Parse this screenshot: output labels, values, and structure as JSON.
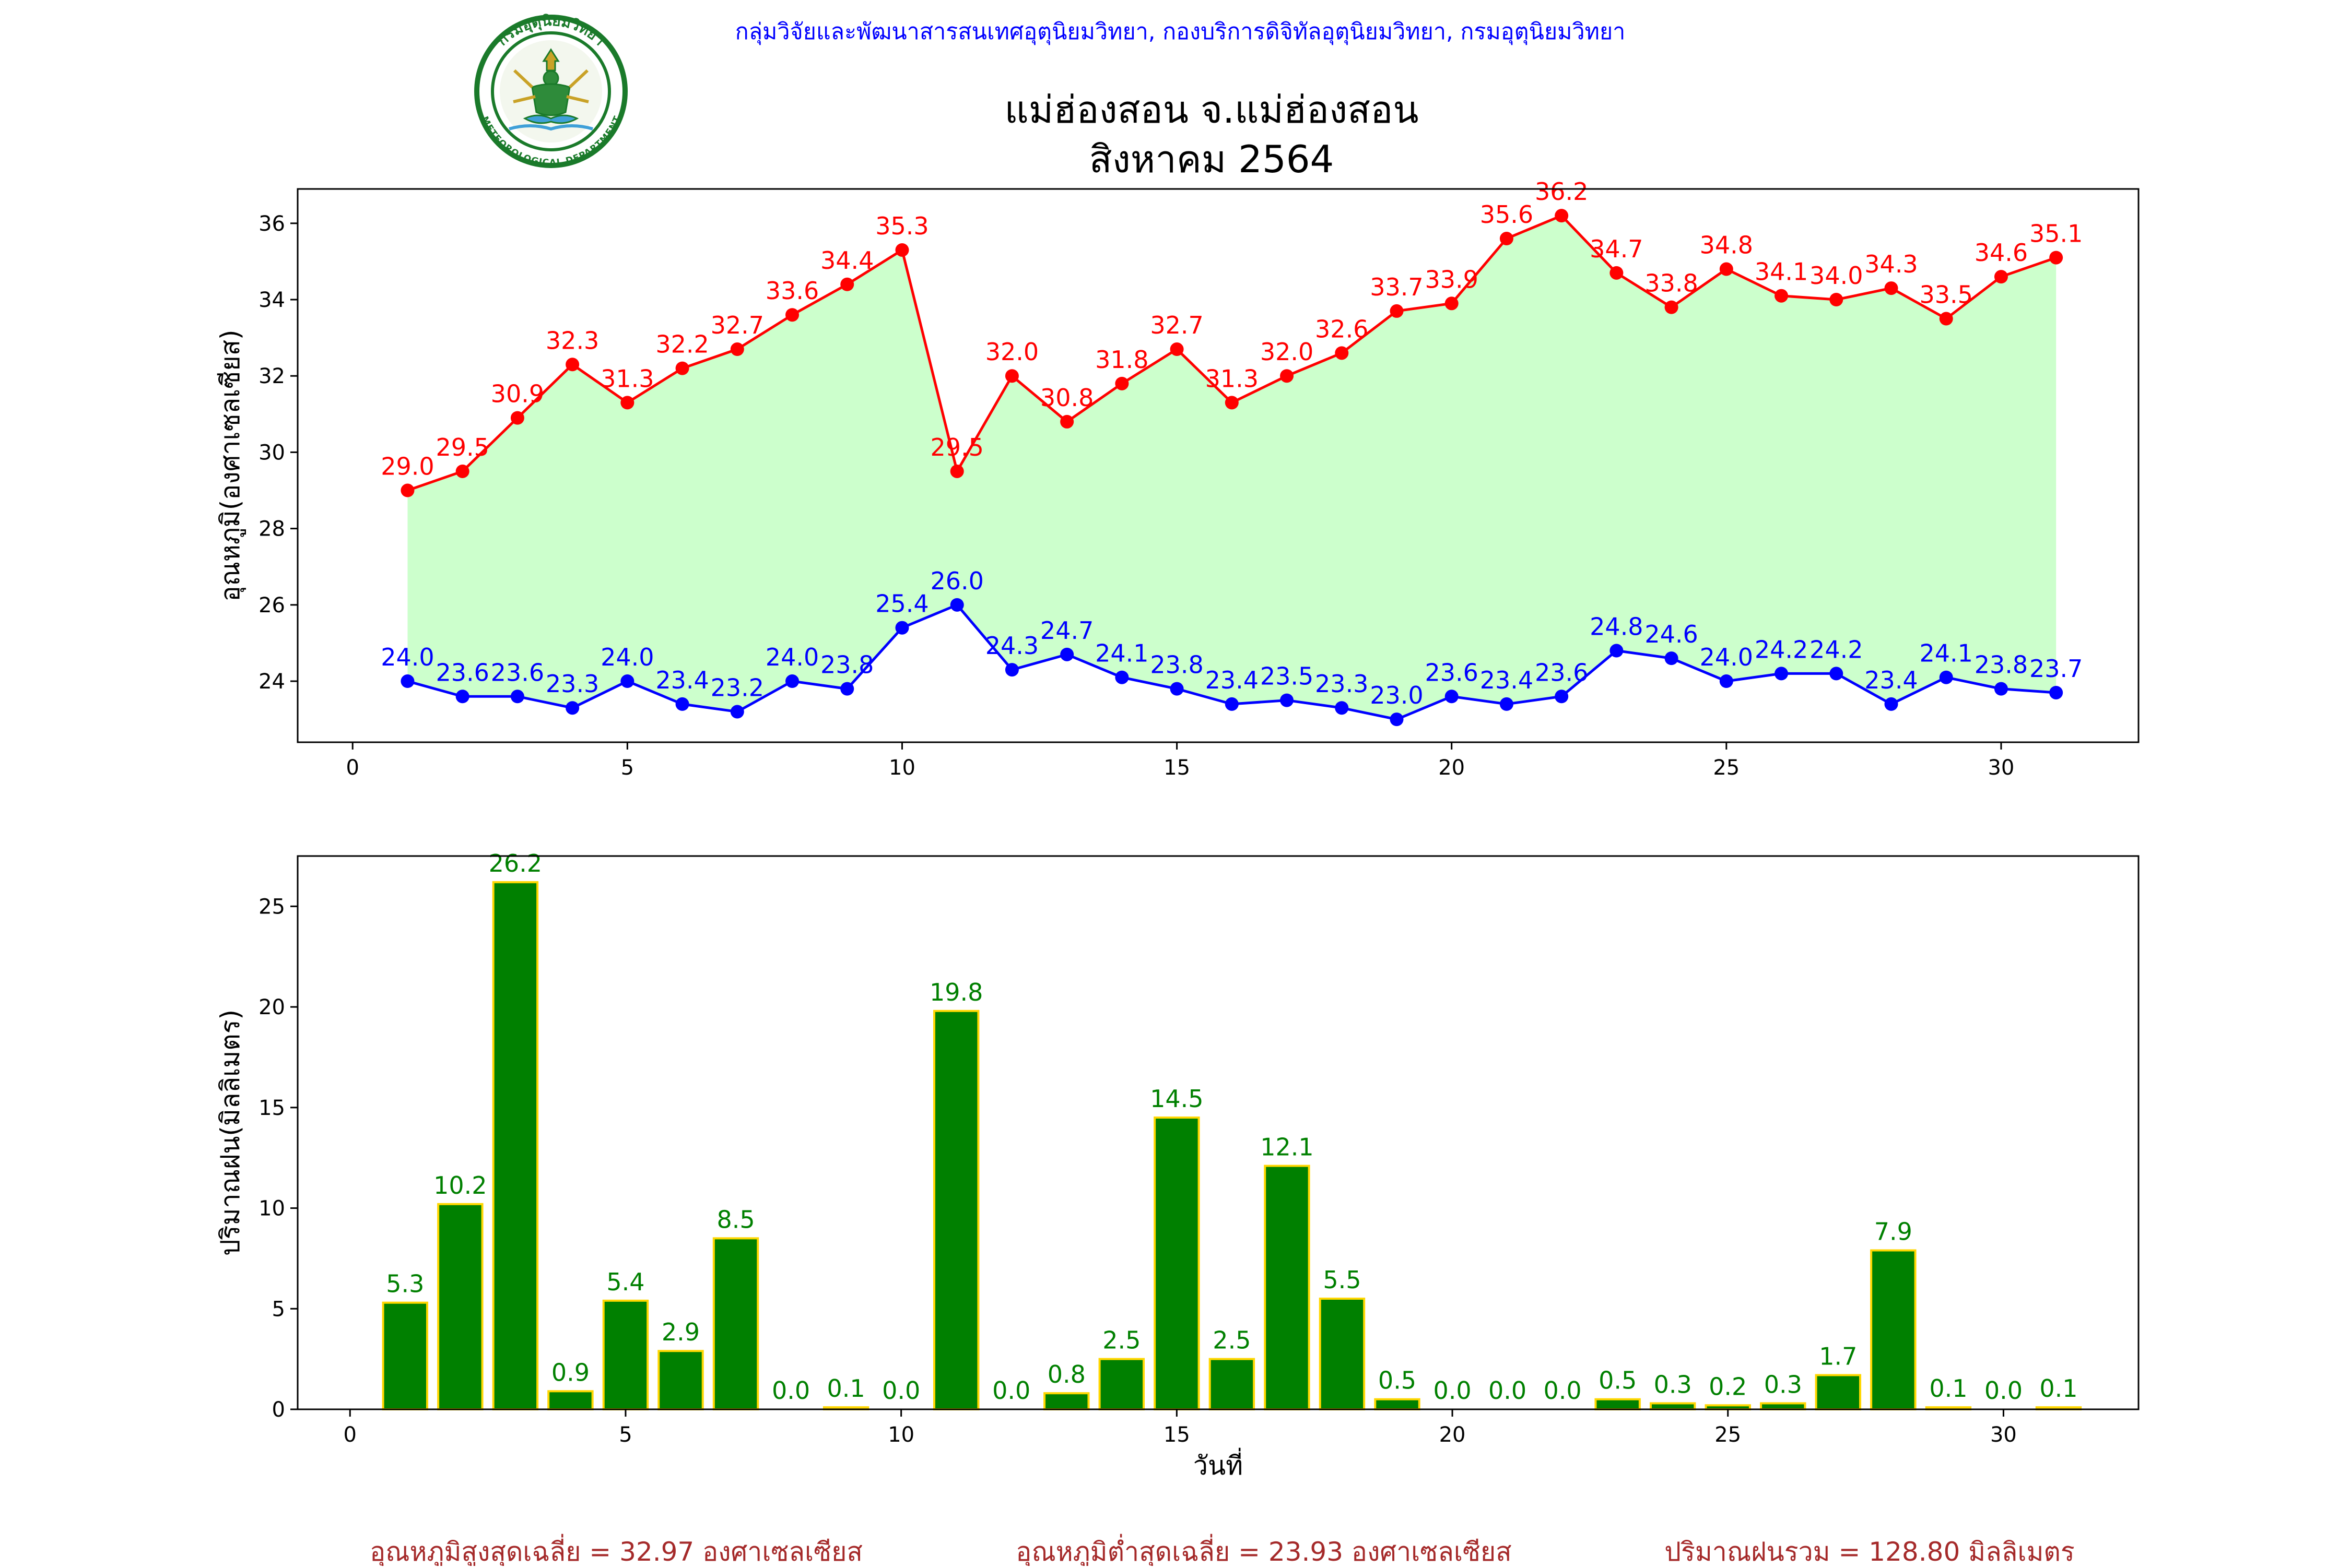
{
  "header": {
    "org_line": "กลุ่มวิจัยและพัฒนาสารสนเทศอุตุนิยมวิทยา, กองบริการดิจิทัลอุตุนิยมวิทยา, กรมอุตุนิยมวิทยา",
    "title_line1": "แม่ฮ่องสอน จ.แม่ฮ่องสอน",
    "title_line2": "สิงหาคม 2564",
    "logo_text_top": "กรมอุตุนิยมวิทยา",
    "logo_text_bottom": "METEOROLOGICAL DEPARTMENT"
  },
  "colors": {
    "max_temp": "#ff0000",
    "min_temp": "#0000ff",
    "fill_between": "#ccffcc",
    "rain_bar": "#008000",
    "rain_bar_edge": "#ffd700",
    "rain_label": "#008000",
    "header_text": "#0000ff",
    "footer_text": "#a52a2a",
    "logo_green": "#1a7a2a"
  },
  "chart_data": [
    {
      "type": "line",
      "ylabel": "อุณหภูมิ(องศาเซลเซียส)",
      "xlabel": "",
      "xlim": [
        -1,
        32.5
      ],
      "ylim": [
        22.4,
        36.9
      ],
      "xticks": [
        0,
        5,
        10,
        15,
        20,
        25,
        30
      ],
      "yticks": [
        24,
        26,
        28,
        30,
        32,
        34,
        36
      ],
      "x": [
        1,
        2,
        3,
        4,
        5,
        6,
        7,
        8,
        9,
        10,
        11,
        12,
        13,
        14,
        15,
        16,
        17,
        18,
        19,
        20,
        21,
        22,
        23,
        24,
        25,
        26,
        27,
        28,
        29,
        30,
        31
      ],
      "series": [
        {
          "key": "max",
          "values": [
            29.0,
            29.5,
            30.9,
            32.3,
            31.3,
            32.2,
            32.7,
            33.6,
            34.4,
            35.3,
            29.5,
            32.0,
            30.8,
            31.8,
            32.7,
            31.3,
            32.0,
            32.6,
            33.7,
            33.9,
            35.6,
            36.2,
            34.7,
            33.8,
            34.8,
            34.1,
            34.0,
            34.3,
            33.5,
            34.6,
            35.1
          ],
          "labels": [
            "29.0",
            "29.5",
            "30.9",
            "32.3",
            "31.3",
            "32.2",
            "32.7",
            "33.6",
            "34.4",
            "35.3",
            "29.5",
            "32.0",
            "30.8",
            "31.8",
            "32.7",
            "31.3",
            "32.0",
            "32.6",
            "33.7",
            "33.9",
            "35.6",
            "36.2",
            "34.7",
            "33.8",
            "34.8",
            "34.1",
            "34.0",
            "34.3",
            "33.5",
            "34.6",
            "35.1"
          ]
        },
        {
          "key": "min",
          "values": [
            24.0,
            23.6,
            23.6,
            23.3,
            24.0,
            23.4,
            23.2,
            24.0,
            23.8,
            25.4,
            26.0,
            24.3,
            24.7,
            24.1,
            23.8,
            23.4,
            23.5,
            23.3,
            23.0,
            23.6,
            23.4,
            23.6,
            24.8,
            24.6,
            24.0,
            24.2,
            24.2,
            23.4,
            24.1,
            23.8,
            23.7
          ],
          "labels": [
            "24.0",
            "23.6",
            "23.6",
            "23.3",
            "24.0",
            "23.4",
            "23.2",
            "24.0",
            "23.8",
            "25.4",
            "26.0",
            "24.3",
            "24.7",
            "24.1",
            "23.8",
            "23.4",
            "23.5",
            "23.3",
            "23.0",
            "23.6",
            "23.4",
            "23.6",
            "24.8",
            "24.6",
            "24.0",
            "24.2",
            "24.2",
            "23.4",
            "24.1",
            "23.8",
            "23.7"
          ]
        }
      ],
      "grid": false
    },
    {
      "type": "bar",
      "ylabel": "ปริมาณฝน(มิลลิเมตร)",
      "xlabel": "วันที่",
      "xlim": [
        -0.95,
        32.45
      ],
      "ylim": [
        0,
        27.5
      ],
      "xticks": [
        0,
        5,
        10,
        15,
        20,
        25,
        30
      ],
      "yticks": [
        0,
        5,
        10,
        15,
        20,
        25
      ],
      "x": [
        1,
        2,
        3,
        4,
        5,
        6,
        7,
        8,
        9,
        10,
        11,
        12,
        13,
        14,
        15,
        16,
        17,
        18,
        19,
        20,
        21,
        22,
        23,
        24,
        25,
        26,
        27,
        28,
        29,
        30,
        31
      ],
      "values": [
        5.3,
        10.2,
        26.2,
        0.9,
        5.4,
        2.9,
        8.5,
        0.0,
        0.1,
        0.0,
        19.8,
        0.0,
        0.8,
        2.5,
        14.5,
        2.5,
        12.1,
        5.5,
        0.5,
        0.0,
        0.0,
        0.0,
        0.5,
        0.3,
        0.2,
        0.3,
        1.7,
        7.9,
        0.1,
        0.0,
        0.1
      ],
      "labels": [
        "5.3",
        "10.2",
        "26.2",
        "0.9",
        "5.4",
        "2.9",
        "8.5",
        "0.0",
        "0.1",
        "0.0",
        "19.8",
        "0.0",
        "0.8",
        "2.5",
        "14.5",
        "2.5",
        "12.1",
        "5.5",
        "0.5",
        "0.0",
        "0.0",
        "0.0",
        "0.5",
        "0.3",
        "0.2",
        "0.3",
        "1.7",
        "7.9",
        "0.1",
        "0.0",
        "0.1"
      ],
      "grid": false
    }
  ],
  "footer": {
    "avg_max": "อุณหภูมิสูงสุดเฉลี่ย = 32.97 องศาเซลเซียส",
    "avg_min": "อุณหภูมิต่ำสุดเฉลี่ย = 23.93 องศาเซลเซียส",
    "total_rain": "ปริมาณฝนรวม = 128.80 มิลลิเมตร"
  }
}
